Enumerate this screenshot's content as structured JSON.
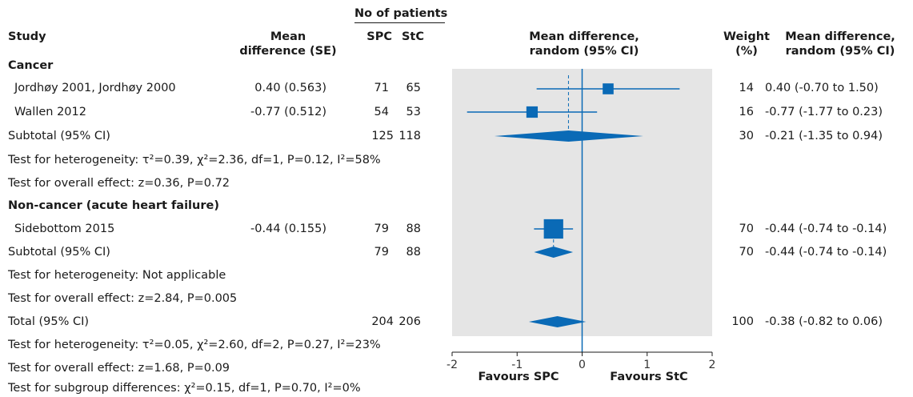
{
  "header": {
    "no_patients": "No of patients",
    "study": "Study",
    "mean_diff_1": "Mean",
    "mean_diff_2": "difference (SE)",
    "spc": "SPC",
    "stc": "StC",
    "plot_1": "Mean difference,",
    "plot_2": "random (95% CI)",
    "weight_1": "Weight",
    "weight_2": "(%)",
    "ci_1": "Mean difference,",
    "ci_2": "random (95% CI)"
  },
  "groups": {
    "cancer": {
      "label": "Cancer",
      "studies": [
        {
          "name": "Jordhøy 2001, Jordhøy 2000",
          "se": "0.40 (0.563)",
          "spc": "71",
          "stc": "65",
          "weight": "14",
          "ci_text": "0.40 (-0.70 to 1.50)"
        },
        {
          "name": "Wallen 2012",
          "se": "-0.77 (0.512)",
          "spc": "54",
          "stc": "53",
          "weight": "16",
          "ci_text": "-0.77 (-1.77 to 0.23)"
        }
      ],
      "subtotal": {
        "name": "Subtotal (95% CI)",
        "spc": "125",
        "stc": "118",
        "weight": "30",
        "ci_text": "-0.21 (-1.35 to 0.94)"
      },
      "heterogeneity": "Test for heterogeneity: τ²=0.39, χ²=2.36, df=1, P=0.12, I²=58%",
      "overall": "Test for overall effect: z=0.36, P=0.72"
    },
    "noncancer": {
      "label": "Non-cancer (acute heart failure)",
      "studies": [
        {
          "name": "Sidebottom 2015",
          "se": "-0.44 (0.155)",
          "spc": "79",
          "stc": "88",
          "weight": "70",
          "ci_text": "-0.44 (-0.74 to -0.14)"
        }
      ],
      "subtotal": {
        "name": "Subtotal (95% CI)",
        "spc": "79",
        "stc": "88",
        "weight": "70",
        "ci_text": "-0.44 (-0.74 to -0.14)"
      },
      "heterogeneity": "Test for heterogeneity: Not applicable",
      "overall": "Test for overall effect: z=2.84, P=0.005"
    }
  },
  "total": {
    "name": "Total (95% CI)",
    "spc": "204",
    "stc": "206",
    "weight": "100",
    "ci_text": "-0.38 (-0.82 to 0.06)",
    "heterogeneity": "Test for heterogeneity: τ²=0.05, χ²=2.60, df=2, P=0.27, I²=23%",
    "overall": "Test for overall effect: z=1.68, P=0.09",
    "subgroup": "Test for subgroup differences: χ²=0.15, df=1, P=0.70, I²=0%"
  },
  "axis": {
    "ticks": [
      "-2",
      "-1",
      "0",
      "1",
      "2"
    ],
    "favours_left": "Favours SPC",
    "favours_right": "Favours StC"
  },
  "colors": {
    "accent": "#0a6ab6",
    "panel": "#e5e5e5",
    "text": "#1a1a1a"
  },
  "chart_data": {
    "type": "forest",
    "xlim": [
      -2,
      2
    ],
    "xticks": [
      -2,
      -1,
      0,
      1,
      2
    ],
    "studies": [
      {
        "name": "Jordhøy 2001, Jordhøy 2000",
        "group": "Cancer",
        "estimate": 0.4,
        "lower": -0.7,
        "upper": 1.5,
        "weight": 14
      },
      {
        "name": "Wallen 2012",
        "group": "Cancer",
        "estimate": -0.77,
        "lower": -1.77,
        "upper": 0.23,
        "weight": 16
      },
      {
        "name": "Sidebottom 2015",
        "group": "Non-cancer (acute heart failure)",
        "estimate": -0.44,
        "lower": -0.74,
        "upper": -0.14,
        "weight": 70
      }
    ],
    "pooled": [
      {
        "name": "Subtotal (95% CI)",
        "group": "Cancer",
        "estimate": -0.21,
        "lower": -1.35,
        "upper": 0.94
      },
      {
        "name": "Subtotal (95% CI)",
        "group": "Non-cancer (acute heart failure)",
        "estimate": -0.44,
        "lower": -0.74,
        "upper": -0.14
      },
      {
        "name": "Total (95% CI)",
        "group": "Total",
        "estimate": -0.38,
        "lower": -0.82,
        "upper": 0.06
      }
    ]
  }
}
